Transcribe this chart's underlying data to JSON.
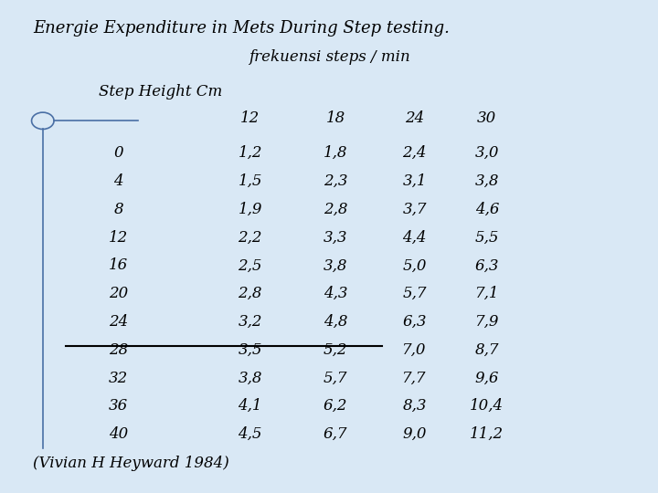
{
  "title": "Energie Expenditure in Mets During Step testing.",
  "subtitle": "frekuensi steps / min",
  "row_label": "Step Height Cm",
  "col_headers": [
    "12",
    "18",
    "24",
    "30"
  ],
  "row_headers": [
    "0",
    "4",
    "8",
    "12",
    "16",
    "20",
    "24",
    "28",
    "32",
    "36",
    "40"
  ],
  "table_data": [
    [
      "1,2",
      "1,8",
      "2,4",
      "3,0"
    ],
    [
      "1,5",
      "2,3",
      "3,1",
      "3,8"
    ],
    [
      "1,9",
      "2,8",
      "3,7",
      "4,6"
    ],
    [
      "2,2",
      "3,3",
      "4,4",
      "5,5"
    ],
    [
      "2,5",
      "3,8",
      "5,0",
      "6,3"
    ],
    [
      "2,8",
      "4,3",
      "5,7",
      "7,1"
    ],
    [
      "3,2",
      "4,8",
      "6,3",
      "7,9"
    ],
    [
      "3,5",
      "5,2",
      "7,0",
      "8,7"
    ],
    [
      "3,8",
      "5,7",
      "7,7",
      "9,6"
    ],
    [
      "4,1",
      "6,2",
      "8,3",
      "10,4"
    ],
    [
      "4,5",
      "6,7",
      "9,0",
      "11,2"
    ]
  ],
  "underline_row": 7,
  "footnote": "(Vivian H Heyward 1984)",
  "bg_color": "#d9e8f5",
  "text_color": "#000000",
  "font_family": "serif",
  "title_fontsize": 13,
  "body_fontsize": 12,
  "header_fontsize": 12,
  "circle_color": "#4a6fa5",
  "underline_color": "#000000"
}
